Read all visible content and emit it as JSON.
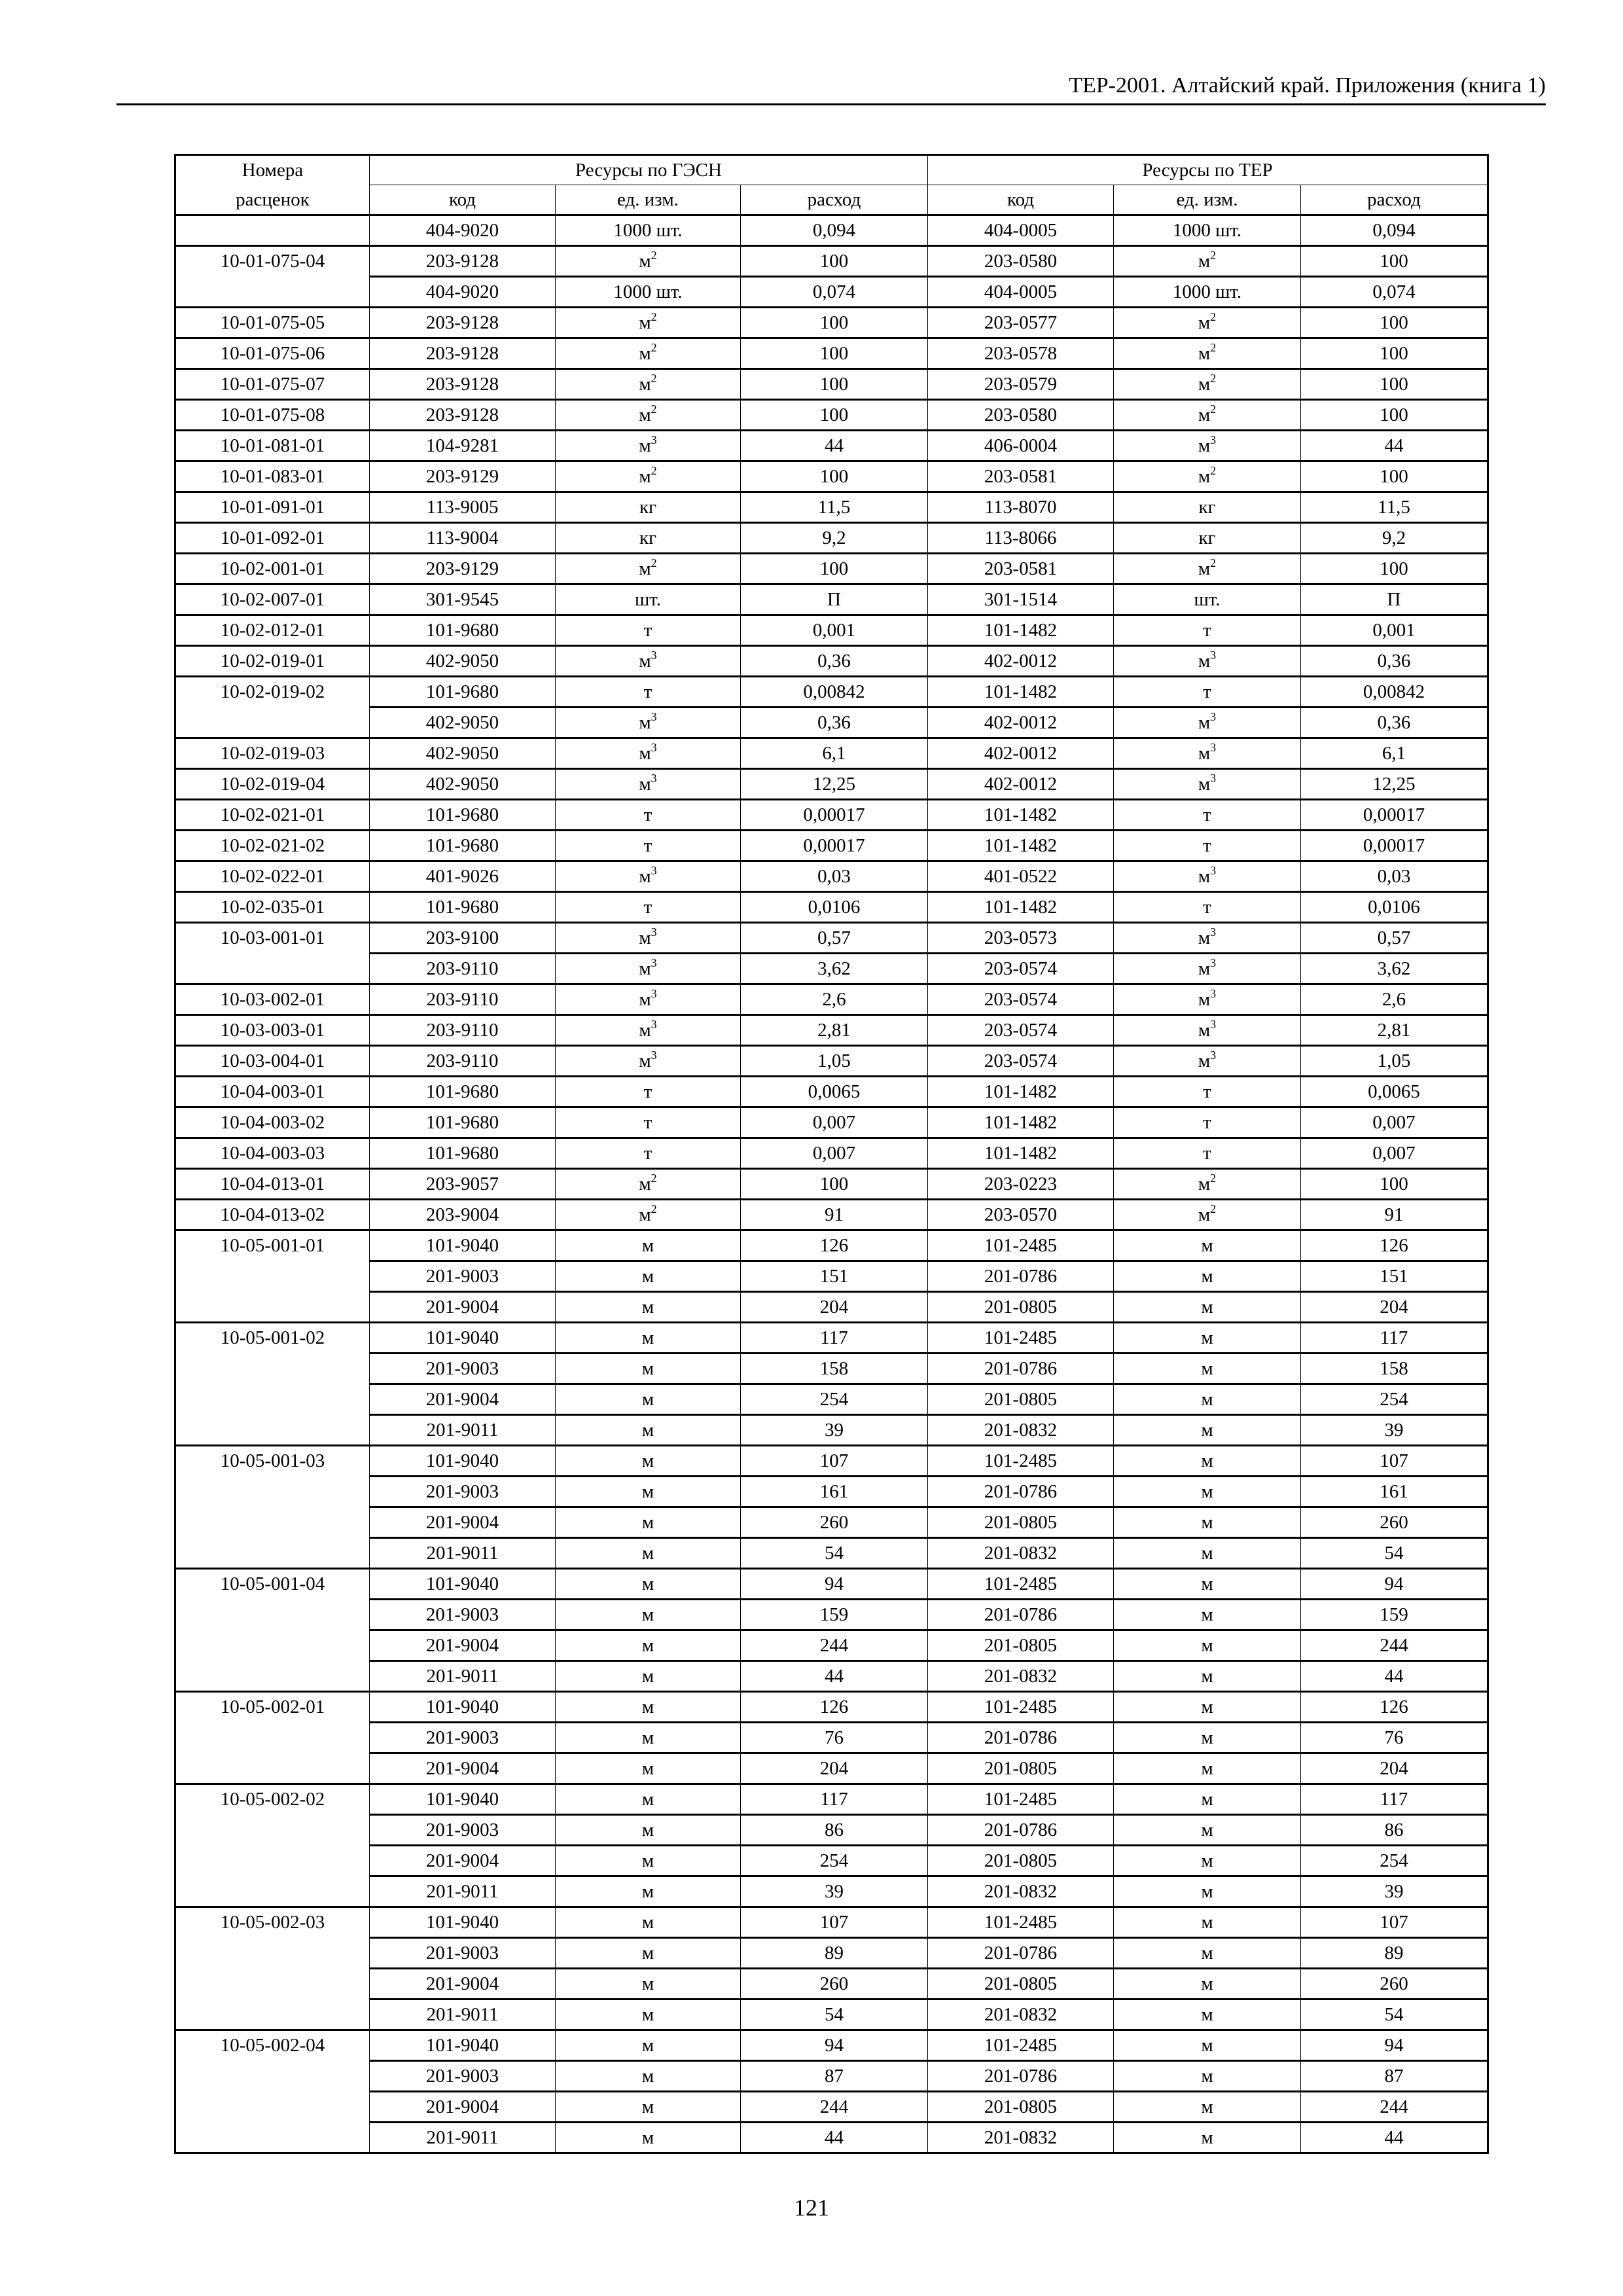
{
  "running_header": "ТЕР-2001. Алтайский край. Приложения (книга 1)",
  "page_number": "121",
  "table": {
    "header": {
      "col1_line1": "Номера",
      "col1_line2": "расценок",
      "group_gesn": "Ресурсы по ГЭСН",
      "group_ter": "Ресурсы по ТЕР",
      "sub": [
        "код",
        "ед. изм.",
        "расход",
        "код",
        "ед. изм.",
        "расход"
      ]
    },
    "rows": [
      [
        "",
        "404-9020",
        "1000 шт.",
        "0,094",
        "404-0005",
        "1000 шт.",
        "0,094"
      ],
      [
        "10-01-075-04",
        "203-9128",
        "м2",
        "100",
        "203-0580",
        "м2",
        "100"
      ],
      [
        "",
        "404-9020",
        "1000 шт.",
        "0,074",
        "404-0005",
        "1000 шт.",
        "0,074"
      ],
      [
        "10-01-075-05",
        "203-9128",
        "м2",
        "100",
        "203-0577",
        "м2",
        "100"
      ],
      [
        "10-01-075-06",
        "203-9128",
        "м2",
        "100",
        "203-0578",
        "м2",
        "100"
      ],
      [
        "10-01-075-07",
        "203-9128",
        "м2",
        "100",
        "203-0579",
        "м2",
        "100"
      ],
      [
        "10-01-075-08",
        "203-9128",
        "м2",
        "100",
        "203-0580",
        "м2",
        "100"
      ],
      [
        "10-01-081-01",
        "104-9281",
        "м3",
        "44",
        "406-0004",
        "м3",
        "44"
      ],
      [
        "10-01-083-01",
        "203-9129",
        "м2",
        "100",
        "203-0581",
        "м2",
        "100"
      ],
      [
        "10-01-091-01",
        "113-9005",
        "кг",
        "11,5",
        "113-8070",
        "кг",
        "11,5"
      ],
      [
        "10-01-092-01",
        "113-9004",
        "кг",
        "9,2",
        "113-8066",
        "кг",
        "9,2"
      ],
      [
        "10-02-001-01",
        "203-9129",
        "м2",
        "100",
        "203-0581",
        "м2",
        "100"
      ],
      [
        "10-02-007-01",
        "301-9545",
        "шт.",
        "П",
        "301-1514",
        "шт.",
        "П"
      ],
      [
        "10-02-012-01",
        "101-9680",
        "т",
        "0,001",
        "101-1482",
        "т",
        "0,001"
      ],
      [
        "10-02-019-01",
        "402-9050",
        "м3",
        "0,36",
        "402-0012",
        "м3",
        "0,36"
      ],
      [
        "10-02-019-02",
        "101-9680",
        "т",
        "0,00842",
        "101-1482",
        "т",
        "0,00842"
      ],
      [
        "",
        "402-9050",
        "м3",
        "0,36",
        "402-0012",
        "м3",
        "0,36"
      ],
      [
        "10-02-019-03",
        "402-9050",
        "м3",
        "6,1",
        "402-0012",
        "м3",
        "6,1"
      ],
      [
        "10-02-019-04",
        "402-9050",
        "м3",
        "12,25",
        "402-0012",
        "м3",
        "12,25"
      ],
      [
        "10-02-021-01",
        "101-9680",
        "т",
        "0,00017",
        "101-1482",
        "т",
        "0,00017"
      ],
      [
        "10-02-021-02",
        "101-9680",
        "т",
        "0,00017",
        "101-1482",
        "т",
        "0,00017"
      ],
      [
        "10-02-022-01",
        "401-9026",
        "м3",
        "0,03",
        "401-0522",
        "м3",
        "0,03"
      ],
      [
        "10-02-035-01",
        "101-9680",
        "т",
        "0,0106",
        "101-1482",
        "т",
        "0,0106"
      ],
      [
        "10-03-001-01",
        "203-9100",
        "м3",
        "0,57",
        "203-0573",
        "м3",
        "0,57"
      ],
      [
        "",
        "203-9110",
        "м3",
        "3,62",
        "203-0574",
        "м3",
        "3,62"
      ],
      [
        "10-03-002-01",
        "203-9110",
        "м3",
        "2,6",
        "203-0574",
        "м3",
        "2,6"
      ],
      [
        "10-03-003-01",
        "203-9110",
        "м3",
        "2,81",
        "203-0574",
        "м3",
        "2,81"
      ],
      [
        "10-03-004-01",
        "203-9110",
        "м3",
        "1,05",
        "203-0574",
        "м3",
        "1,05"
      ],
      [
        "10-04-003-01",
        "101-9680",
        "т",
        "0,0065",
        "101-1482",
        "т",
        "0,0065"
      ],
      [
        "10-04-003-02",
        "101-9680",
        "т",
        "0,007",
        "101-1482",
        "т",
        "0,007"
      ],
      [
        "10-04-003-03",
        "101-9680",
        "т",
        "0,007",
        "101-1482",
        "т",
        "0,007"
      ],
      [
        "10-04-013-01",
        "203-9057",
        "м2",
        "100",
        "203-0223",
        "м2",
        "100"
      ],
      [
        "10-04-013-02",
        "203-9004",
        "м2",
        "91",
        "203-0570",
        "м2",
        "91"
      ],
      [
        "10-05-001-01",
        "101-9040",
        "м",
        "126",
        "101-2485",
        "м",
        "126"
      ],
      [
        "",
        "201-9003",
        "м",
        "151",
        "201-0786",
        "м",
        "151"
      ],
      [
        "",
        "201-9004",
        "м",
        "204",
        "201-0805",
        "м",
        "204"
      ],
      [
        "10-05-001-02",
        "101-9040",
        "м",
        "117",
        "101-2485",
        "м",
        "117"
      ],
      [
        "",
        "201-9003",
        "м",
        "158",
        "201-0786",
        "м",
        "158"
      ],
      [
        "",
        "201-9004",
        "м",
        "254",
        "201-0805",
        "м",
        "254"
      ],
      [
        "",
        "201-9011",
        "м",
        "39",
        "201-0832",
        "м",
        "39"
      ],
      [
        "10-05-001-03",
        "101-9040",
        "м",
        "107",
        "101-2485",
        "м",
        "107"
      ],
      [
        "",
        "201-9003",
        "м",
        "161",
        "201-0786",
        "м",
        "161"
      ],
      [
        "",
        "201-9004",
        "м",
        "260",
        "201-0805",
        "м",
        "260"
      ],
      [
        "",
        "201-9011",
        "м",
        "54",
        "201-0832",
        "м",
        "54"
      ],
      [
        "10-05-001-04",
        "101-9040",
        "м",
        "94",
        "101-2485",
        "м",
        "94"
      ],
      [
        "",
        "201-9003",
        "м",
        "159",
        "201-0786",
        "м",
        "159"
      ],
      [
        "",
        "201-9004",
        "м",
        "244",
        "201-0805",
        "м",
        "244"
      ],
      [
        "",
        "201-9011",
        "м",
        "44",
        "201-0832",
        "м",
        "44"
      ],
      [
        "10-05-002-01",
        "101-9040",
        "м",
        "126",
        "101-2485",
        "м",
        "126"
      ],
      [
        "",
        "201-9003",
        "м",
        "76",
        "201-0786",
        "м",
        "76"
      ],
      [
        "",
        "201-9004",
        "м",
        "204",
        "201-0805",
        "м",
        "204"
      ],
      [
        "10-05-002-02",
        "101-9040",
        "м",
        "117",
        "101-2485",
        "м",
        "117"
      ],
      [
        "",
        "201-9003",
        "м",
        "86",
        "201-0786",
        "м",
        "86"
      ],
      [
        "",
        "201-9004",
        "м",
        "254",
        "201-0805",
        "м",
        "254"
      ],
      [
        "",
        "201-9011",
        "м",
        "39",
        "201-0832",
        "м",
        "39"
      ],
      [
        "10-05-002-03",
        "101-9040",
        "м",
        "107",
        "101-2485",
        "м",
        "107"
      ],
      [
        "",
        "201-9003",
        "м",
        "89",
        "201-0786",
        "м",
        "89"
      ],
      [
        "",
        "201-9004",
        "м",
        "260",
        "201-0805",
        "м",
        "260"
      ],
      [
        "",
        "201-9011",
        "м",
        "54",
        "201-0832",
        "м",
        "54"
      ],
      [
        "10-05-002-04",
        "101-9040",
        "м",
        "94",
        "101-2485",
        "м",
        "94"
      ],
      [
        "",
        "201-9003",
        "м",
        "87",
        "201-0786",
        "м",
        "87"
      ],
      [
        "",
        "201-9004",
        "м",
        "244",
        "201-0805",
        "м",
        "244"
      ],
      [
        "",
        "201-9011",
        "м",
        "44",
        "201-0832",
        "м",
        "44"
      ]
    ]
  }
}
